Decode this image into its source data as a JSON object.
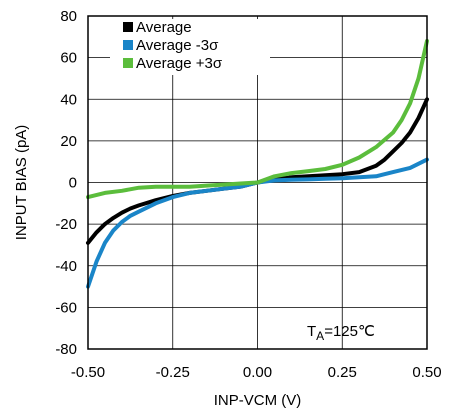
{
  "chart_data": {
    "type": "line",
    "xlabel": "INP-VCM (V)",
    "ylabel": "INPUT BIAS (pA)",
    "xlim": [
      -0.5,
      0.5
    ],
    "ylim": [
      -80,
      80
    ],
    "x_ticks": [
      -0.5,
      -0.25,
      0.0,
      0.25,
      0.5
    ],
    "x_tick_labels": [
      "-0.50",
      "-0.25",
      "0.00",
      "0.25",
      "0.50"
    ],
    "y_ticks": [
      -80,
      -60,
      -40,
      -20,
      0,
      20,
      40,
      60,
      80
    ],
    "y_tick_labels": [
      "-80",
      "-60",
      "-40",
      "-20",
      "0",
      "20",
      "40",
      "60",
      "80"
    ],
    "grid": true,
    "legend_position": "top-left",
    "annotation": {
      "text_main": "T",
      "text_sub": "A",
      "text_rest": "=125℃"
    },
    "series": [
      {
        "name": "Average",
        "color": "#000000",
        "x": [
          -0.5,
          -0.475,
          -0.45,
          -0.425,
          -0.4,
          -0.375,
          -0.35,
          -0.3,
          -0.25,
          -0.2,
          -0.15,
          -0.1,
          -0.05,
          0.0,
          0.05,
          0.1,
          0.15,
          0.2,
          0.25,
          0.3,
          0.35,
          0.375,
          0.4,
          0.425,
          0.45,
          0.475,
          0.5
        ],
        "values": [
          -29,
          -24,
          -20,
          -17,
          -14.5,
          -12.5,
          -11,
          -8.5,
          -6.5,
          -5,
          -4,
          -3,
          -2,
          0,
          1.5,
          2.5,
          3,
          3.5,
          4,
          5,
          8,
          11,
          15,
          19,
          24,
          31,
          40
        ]
      },
      {
        "name": "Average -3σ",
        "color": "#1a85c8",
        "x": [
          -0.5,
          -0.475,
          -0.45,
          -0.425,
          -0.4,
          -0.375,
          -0.35,
          -0.3,
          -0.25,
          -0.2,
          -0.15,
          -0.1,
          -0.05,
          0.0,
          0.05,
          0.1,
          0.15,
          0.2,
          0.25,
          0.3,
          0.35,
          0.4,
          0.45,
          0.5
        ],
        "values": [
          -50,
          -38,
          -29,
          -23,
          -19,
          -16,
          -14,
          -10,
          -7,
          -5,
          -4,
          -3,
          -2,
          0,
          1,
          1.3,
          1.5,
          1.8,
          2,
          2.5,
          3,
          5,
          7,
          11
        ]
      },
      {
        "name": "Average +3σ",
        "color": "#5bbd3c",
        "x": [
          -0.5,
          -0.45,
          -0.4,
          -0.35,
          -0.3,
          -0.25,
          -0.2,
          -0.15,
          -0.1,
          -0.05,
          0.0,
          0.05,
          0.1,
          0.15,
          0.2,
          0.25,
          0.3,
          0.35,
          0.4,
          0.425,
          0.45,
          0.475,
          0.5
        ],
        "values": [
          -7,
          -5,
          -4,
          -2.5,
          -2,
          -2,
          -2,
          -1.5,
          -1,
          -0.5,
          0,
          3,
          4.5,
          5.5,
          6.5,
          8.5,
          12,
          17,
          24,
          30,
          38,
          50,
          68
        ]
      }
    ]
  }
}
